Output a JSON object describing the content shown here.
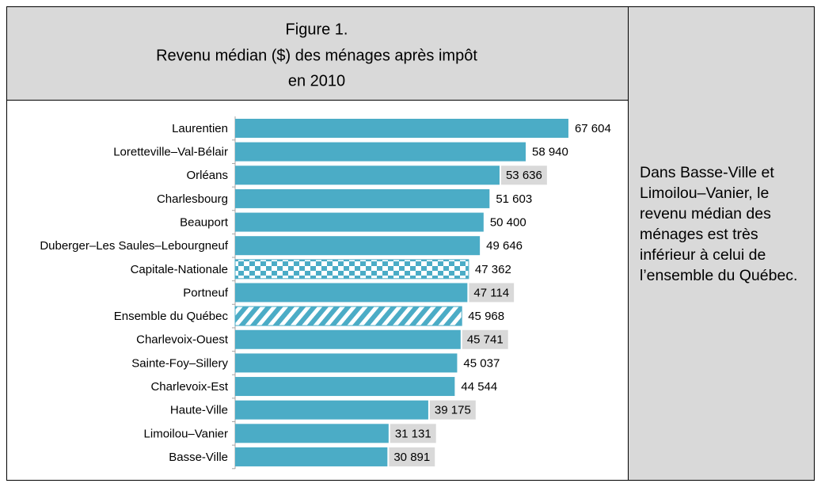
{
  "chart_data": {
    "type": "bar",
    "orientation": "horizontal",
    "figure_label": "Figure 1.",
    "title_lines": [
      "Revenu médian ($) des ménages après impôt",
      "en 2010"
    ],
    "categories": [
      "Laurentien",
      "Loretteville–Val-Bélair",
      "Orléans",
      "Charlesbourg",
      "Beauport",
      "Duberger–Les Saules–Lebourgneuf",
      "Capitale-Nationale",
      "Portneuf",
      "Ensemble du Québec",
      "Charlevoix-Ouest",
      "Sainte-Foy–Sillery",
      "Charlevoix-Est",
      "Haute-Ville",
      "Limoilou–Vanier",
      "Basse-Ville"
    ],
    "values": [
      67604,
      58940,
      53636,
      51603,
      50400,
      49646,
      47362,
      47114,
      45968,
      45741,
      45037,
      44544,
      39175,
      31131,
      30891
    ],
    "value_labels": [
      "67 604",
      "58 940",
      "53 636",
      "51 603",
      "50 400",
      "49 646",
      "47 362",
      "47 114",
      "45 968",
      "45 741",
      "45 037",
      "44 544",
      "39 175",
      "31 131",
      "30 891"
    ],
    "patterns": [
      "solid",
      "solid",
      "solid",
      "solid",
      "solid",
      "solid",
      "checker",
      "solid",
      "stripes",
      "solid",
      "solid",
      "solid",
      "solid",
      "solid",
      "solid"
    ],
    "highlighted_labels": [
      false,
      false,
      true,
      false,
      false,
      false,
      false,
      true,
      false,
      true,
      false,
      false,
      true,
      true,
      true
    ],
    "color": "#4bacc6",
    "xlim": [
      0,
      75000
    ]
  },
  "note": "Dans Basse-Ville et Limoilou–Vanier, le revenu médian des ménages est très inférieur à celui de l’ensemble du Québec."
}
